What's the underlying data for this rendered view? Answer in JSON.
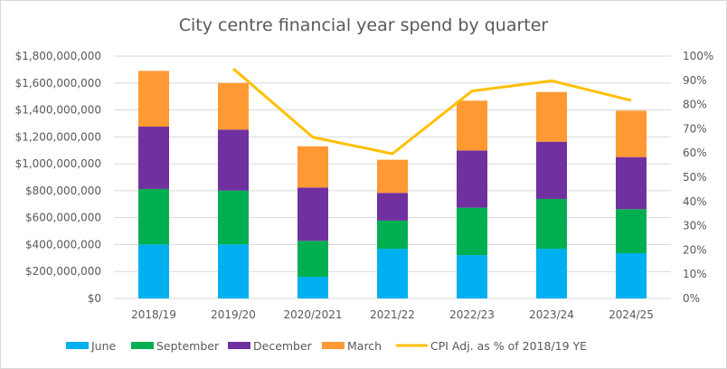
{
  "chart_data": {
    "type": "bar",
    "stacked": true,
    "title": "City centre financial year spend by quarter",
    "xlabel": "",
    "ylabel": "",
    "categories": [
      "2018/19",
      "2019/20",
      "2020/2021",
      "2021/22",
      "2022/23",
      "2023/24",
      "2024/25"
    ],
    "series": [
      {
        "name": "June",
        "color": "#00b0f0",
        "values": [
          401000000,
          401000000,
          161000000,
          369000000,
          322000000,
          369000000,
          336000000
        ]
      },
      {
        "name": "September",
        "color": "#00b050",
        "values": [
          412000000,
          400000000,
          267000000,
          209000000,
          352000000,
          370000000,
          327000000
        ]
      },
      {
        "name": "December",
        "color": "#7030a0",
        "values": [
          463000000,
          453000000,
          396000000,
          206000000,
          425000000,
          425000000,
          387000000
        ]
      },
      {
        "name": "March",
        "color": "#ff9933",
        "values": [
          414000000,
          346000000,
          306000000,
          246000000,
          370000000,
          369000000,
          345000000
        ]
      }
    ],
    "line_series": {
      "name": "CPI Adj. as % of 2018/19 YE",
      "color": "#ffc000",
      "axis": "right",
      "values": [
        null,
        0.948,
        0.665,
        0.597,
        0.856,
        0.898,
        0.817
      ]
    },
    "ylim": [
      0,
      1800000000
    ],
    "yticks": [
      "$0",
      "$200,000,000",
      "$400,000,000",
      "$600,000,000",
      "$800,000,000",
      "$1,000,000,000",
      "$1,200,000,000",
      "$1,400,000,000",
      "$1,600,000,000",
      "$1,800,000,000"
    ],
    "y2lim": [
      0,
      1
    ],
    "y2ticks": [
      "0%",
      "10%",
      "20%",
      "30%",
      "40%",
      "50%",
      "60%",
      "70%",
      "80%",
      "90%",
      "100%"
    ],
    "grid": true,
    "gridColor": "#d9d9d9",
    "legend_position": "bottom",
    "legend": [
      "June",
      "September",
      "December",
      "March",
      "CPI Adj. as % of 2018/19 YE"
    ]
  }
}
